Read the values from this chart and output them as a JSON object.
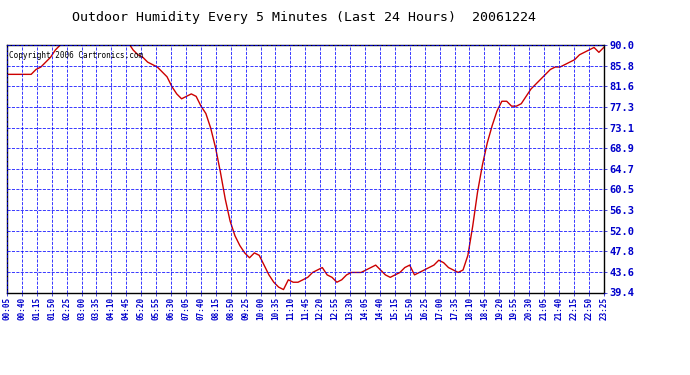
{
  "title": "Outdoor Humidity Every 5 Minutes (Last 24 Hours)  20061224",
  "copyright": "Copyright 2006 Cartronics.com",
  "line_color": "#cc0000",
  "bg_color": "#ffffff",
  "plot_bg_color": "#ffffff",
  "grid_color": "#0000ff",
  "border_color": "#000000",
  "ylabel_color": "#0000cc",
  "title_color": "#000000",
  "ylim": [
    39.4,
    90.0
  ],
  "yticks": [
    39.4,
    43.6,
    47.8,
    52.0,
    56.3,
    60.5,
    64.7,
    68.9,
    73.1,
    77.3,
    81.6,
    85.8,
    90.0
  ],
  "xtick_labels": [
    "00:05",
    "00:40",
    "01:15",
    "01:50",
    "02:25",
    "03:00",
    "03:35",
    "04:10",
    "04:45",
    "05:20",
    "05:55",
    "06:30",
    "07:05",
    "07:40",
    "08:15",
    "08:50",
    "09:25",
    "10:00",
    "10:35",
    "11:10",
    "11:45",
    "12:20",
    "12:55",
    "13:30",
    "14:05",
    "14:40",
    "15:15",
    "15:50",
    "16:25",
    "17:00",
    "17:35",
    "18:10",
    "18:45",
    "19:20",
    "19:55",
    "20:30",
    "21:05",
    "21:40",
    "22:15",
    "22:50",
    "23:25"
  ],
  "humidity_values": [
    84.0,
    84.0,
    84.0,
    84.0,
    84.0,
    84.0,
    85.0,
    85.5,
    86.5,
    87.5,
    89.0,
    90.0,
    90.5,
    90.5,
    90.5,
    90.5,
    90.5,
    90.5,
    90.0,
    90.5,
    90.5,
    90.5,
    90.5,
    90.5,
    90.5,
    90.5,
    89.0,
    88.0,
    87.5,
    86.5,
    86.0,
    85.5,
    84.5,
    83.5,
    81.5,
    80.0,
    79.0,
    79.5,
    80.0,
    79.5,
    77.5,
    76.0,
    73.0,
    69.0,
    64.0,
    58.5,
    54.0,
    51.0,
    49.0,
    47.5,
    46.5,
    47.5,
    47.0,
    45.0,
    43.0,
    41.5,
    40.5,
    40.0,
    42.0,
    41.5,
    41.5,
    42.0,
    42.5,
    43.5,
    44.0,
    44.5,
    43.0,
    42.5,
    41.5,
    42.0,
    43.0,
    43.5,
    43.5,
    43.5,
    44.0,
    44.5,
    45.0,
    44.0,
    43.0,
    42.5,
    43.0,
    43.5,
    44.5,
    45.0,
    43.0,
    43.5,
    44.0,
    44.5,
    45.0,
    46.0,
    45.5,
    44.5,
    44.0,
    43.5,
    44.0,
    47.0,
    53.0,
    60.0,
    65.5,
    70.0,
    73.5,
    76.5,
    78.5,
    78.5,
    77.5,
    77.5,
    78.0,
    79.5,
    81.0,
    82.0,
    83.0,
    84.0,
    85.0,
    85.5,
    85.5,
    86.0,
    86.5,
    87.0,
    88.0,
    88.5,
    89.0,
    89.5,
    88.5,
    89.5
  ]
}
